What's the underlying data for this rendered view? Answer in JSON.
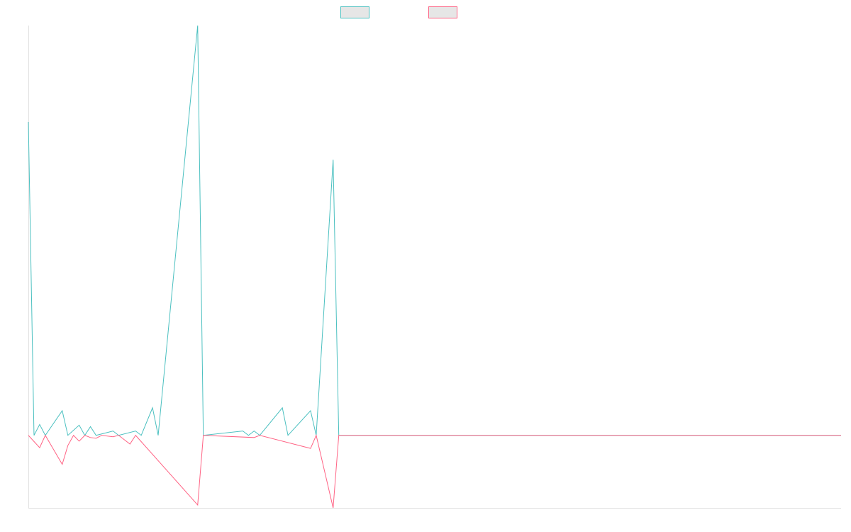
{
  "chart_data": {
    "type": "line",
    "title": "",
    "xlabel": "",
    "ylabel": "",
    "legend_position": "top",
    "grid": false,
    "x_count": 145,
    "ylim": [
      -100,
      565
    ],
    "colors": {
      "series_a": "#4bc0c0",
      "series_b": "#ff6384",
      "legend_fill": "#e6e6e6",
      "axis": "#e1e1e1"
    },
    "series": [
      {
        "key": "a",
        "values": [
          [
            0,
            432
          ],
          [
            1,
            0
          ],
          [
            2,
            15
          ],
          [
            3,
            0
          ],
          [
            6,
            34
          ],
          [
            7,
            0
          ],
          [
            9,
            14
          ],
          [
            10,
            0
          ],
          [
            11,
            12
          ],
          [
            12,
            0
          ],
          [
            15,
            6
          ],
          [
            16,
            0
          ],
          [
            19,
            6
          ],
          [
            20,
            0
          ],
          [
            22,
            38
          ],
          [
            23,
            0
          ],
          [
            30,
            565
          ],
          [
            31,
            0
          ],
          [
            38,
            6
          ],
          [
            39,
            0
          ],
          [
            40,
            6
          ],
          [
            41,
            0
          ],
          [
            45,
            38
          ],
          [
            46,
            0
          ],
          [
            50,
            34
          ],
          [
            51,
            0
          ],
          [
            54,
            380
          ],
          [
            55,
            0
          ],
          [
            144,
            0
          ]
        ]
      },
      {
        "key": "b",
        "values": [
          [
            0,
            0
          ],
          [
            2,
            -17
          ],
          [
            3,
            0
          ],
          [
            6,
            -40
          ],
          [
            7,
            -14
          ],
          [
            8,
            0
          ],
          [
            9,
            -8
          ],
          [
            10,
            0
          ],
          [
            11,
            -3
          ],
          [
            12,
            -4
          ],
          [
            13,
            0
          ],
          [
            15,
            -2
          ],
          [
            16,
            0
          ],
          [
            18,
            -12
          ],
          [
            19,
            0
          ],
          [
            30,
            -96
          ],
          [
            31,
            0
          ],
          [
            40,
            -3
          ],
          [
            41,
            0
          ],
          [
            50,
            -18
          ],
          [
            51,
            0
          ],
          [
            54,
            -100
          ],
          [
            55,
            0
          ],
          [
            144,
            0
          ]
        ]
      }
    ]
  }
}
